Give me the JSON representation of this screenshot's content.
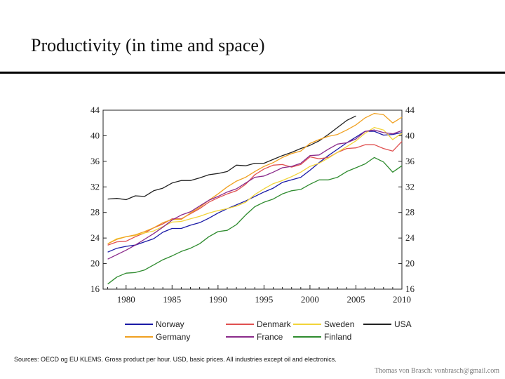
{
  "slide": {
    "title": "Productivity (in time and space)",
    "source": "Sources: OECD og EU KLEMS. Gross product per hour. USD, basic prices. All industries except oil and electronics.",
    "footer": "Thomas von Brasch: vonbrasch@gmail.com"
  },
  "chart_data": {
    "type": "line",
    "title": "",
    "xlabel": "",
    "ylabel": "",
    "xlim": [
      1977.5,
      2010
    ],
    "ylim": [
      16,
      44
    ],
    "x_ticks": [
      1980,
      1985,
      1990,
      1995,
      2000,
      2005,
      2010
    ],
    "y_ticks": [
      16,
      20,
      24,
      28,
      32,
      36,
      40,
      44
    ],
    "grid": false,
    "legend_position": "bottom",
    "series": [
      {
        "name": "Norway",
        "color": "#1a1aa6",
        "x": [
          1978,
          1979,
          1980,
          1981,
          1982,
          1983,
          1984,
          1985,
          1986,
          1987,
          1988,
          1989,
          1990,
          1991,
          1992,
          1993,
          1994,
          1995,
          1996,
          1997,
          1998,
          1999,
          2000,
          2001,
          2002,
          2003,
          2004,
          2005,
          2006,
          2007,
          2008,
          2009,
          2010
        ],
        "values": [
          21.8,
          22.4,
          22.7,
          22.9,
          23.4,
          23.9,
          24.9,
          25.5,
          25.5,
          26.0,
          26.4,
          27.1,
          27.9,
          28.6,
          29.2,
          29.8,
          30.5,
          31.2,
          31.8,
          32.7,
          33.1,
          33.5,
          34.6,
          35.8,
          36.9,
          37.9,
          38.9,
          39.8,
          40.7,
          40.7,
          40.1,
          40.2,
          40.5
        ]
      },
      {
        "name": "Denmark",
        "color": "#e05050",
        "x": [
          1978,
          1979,
          1980,
          1981,
          1982,
          1983,
          1984,
          1985,
          1986,
          1987,
          1988,
          1989,
          1990,
          1991,
          1992,
          1993,
          1994,
          1995,
          1996,
          1997,
          1998,
          1999,
          2000,
          2001,
          2002,
          2003,
          2004,
          2005,
          2006,
          2007,
          2008,
          2009,
          2010
        ],
        "values": [
          22.9,
          23.4,
          23.5,
          24.2,
          24.8,
          25.6,
          26.2,
          27.0,
          27.0,
          27.8,
          28.6,
          29.6,
          30.3,
          30.9,
          31.4,
          32.4,
          33.9,
          34.8,
          35.4,
          35.5,
          35.1,
          35.5,
          36.7,
          36.4,
          36.6,
          37.4,
          38.0,
          38.1,
          38.6,
          38.6,
          38.0,
          37.6,
          39.1
        ]
      },
      {
        "name": "Sweden",
        "color": "#f2d43a",
        "x": [
          1978,
          1979,
          1980,
          1981,
          1982,
          1983,
          1984,
          1985,
          1986,
          1987,
          1988,
          1989,
          1990,
          1991,
          1992,
          1993,
          1994,
          1995,
          1996,
          1997,
          1998,
          1999,
          2000,
          2001,
          2002,
          2003,
          2004,
          2005,
          2006,
          2007,
          2008,
          2009,
          2010
        ],
        "values": [
          23.1,
          23.9,
          24.2,
          24.4,
          24.8,
          25.1,
          25.8,
          26.5,
          26.6,
          27.0,
          27.4,
          27.9,
          28.3,
          28.6,
          29.0,
          29.6,
          30.8,
          31.7,
          32.5,
          33.0,
          33.6,
          34.3,
          35.2,
          35.7,
          36.5,
          37.4,
          38.3,
          39.2,
          40.4,
          41.3,
          40.9,
          39.4,
          40.4
        ]
      },
      {
        "name": "USA",
        "color": "#222222",
        "x": [
          1978,
          1979,
          1980,
          1981,
          1982,
          1983,
          1984,
          1985,
          1986,
          1987,
          1988,
          1989,
          1990,
          1991,
          1992,
          1993,
          1994,
          1995,
          1996,
          1997,
          1998,
          1999,
          2000,
          2001,
          2002,
          2003,
          2004,
          2005
        ],
        "values": [
          30.1,
          30.2,
          30.0,
          30.6,
          30.5,
          31.4,
          31.8,
          32.6,
          33.0,
          33.0,
          33.4,
          33.9,
          34.1,
          34.4,
          35.4,
          35.3,
          35.7,
          35.7,
          36.3,
          36.9,
          37.4,
          38.0,
          38.5,
          39.2,
          40.2,
          41.3,
          42.4,
          43.1
        ]
      },
      {
        "name": "Germany",
        "color": "#f0a020",
        "x": [
          1978,
          1979,
          1980,
          1981,
          1982,
          1983,
          1984,
          1985,
          1986,
          1987,
          1988,
          1989,
          1990,
          1991,
          1992,
          1993,
          1994,
          1995,
          1996,
          1997,
          1998,
          1999,
          2000,
          2001,
          2002,
          2003,
          2004,
          2005,
          2006,
          2007,
          2008,
          2009,
          2010
        ],
        "values": [
          23.1,
          23.8,
          24.2,
          24.5,
          25.0,
          25.6,
          26.4,
          26.9,
          26.9,
          27.9,
          28.8,
          29.9,
          30.9,
          32.0,
          32.9,
          33.5,
          34.4,
          35.2,
          35.8,
          36.6,
          37.2,
          37.6,
          38.8,
          39.4,
          39.9,
          40.2,
          40.9,
          41.7,
          42.8,
          43.5,
          43.3,
          42.0,
          42.9
        ]
      },
      {
        "name": "France",
        "color": "#8a2a8a",
        "x": [
          1978,
          1979,
          1980,
          1981,
          1982,
          1983,
          1984,
          1985,
          1986,
          1987,
          1988,
          1989,
          1990,
          1991,
          1992,
          1993,
          1994,
          1995,
          1996,
          1997,
          1998,
          1999,
          2000,
          2001,
          2002,
          2003,
          2004,
          2005,
          2006,
          2007,
          2008,
          2009,
          2010
        ],
        "values": [
          20.7,
          21.4,
          22.1,
          22.9,
          23.8,
          24.7,
          25.7,
          26.8,
          27.6,
          28.1,
          29.0,
          29.9,
          30.5,
          31.2,
          31.7,
          32.6,
          33.5,
          33.7,
          34.3,
          35.0,
          35.2,
          35.7,
          36.9,
          37.0,
          37.9,
          38.7,
          38.9,
          39.5,
          40.7,
          40.9,
          40.5,
          40.3,
          40.8
        ]
      },
      {
        "name": "Finland",
        "color": "#2e8b2e",
        "x": [
          1978,
          1979,
          1980,
          1981,
          1982,
          1983,
          1984,
          1985,
          1986,
          1987,
          1988,
          1989,
          1990,
          1991,
          1992,
          1993,
          1994,
          1995,
          1996,
          1997,
          1998,
          1999,
          2000,
          2001,
          2002,
          2003,
          2004,
          2005,
          2006,
          2007,
          2008,
          2009,
          2010
        ],
        "values": [
          16.8,
          17.9,
          18.5,
          18.6,
          19.0,
          19.8,
          20.6,
          21.2,
          21.9,
          22.4,
          23.1,
          24.2,
          25.0,
          25.2,
          26.1,
          27.6,
          28.9,
          29.6,
          30.1,
          30.9,
          31.4,
          31.6,
          32.4,
          33.1,
          33.1,
          33.5,
          34.4,
          35.0,
          35.6,
          36.6,
          35.9,
          34.3,
          35.3
        ]
      }
    ],
    "legend_order": [
      "Norway",
      "Denmark",
      "Sweden",
      "USA",
      "Germany",
      "France",
      "Finland"
    ]
  }
}
